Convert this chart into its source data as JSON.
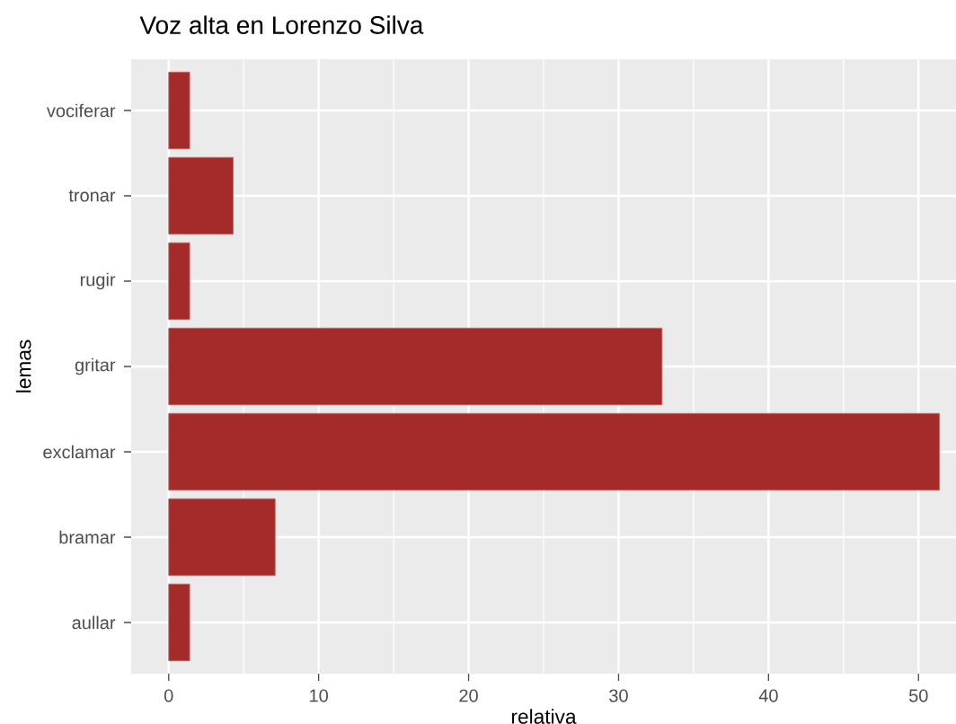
{
  "chart_data": {
    "type": "bar",
    "orientation": "horizontal",
    "title": "Voz alta en Lorenzo Silva",
    "xlabel": "relativa",
    "ylabel": "lemas",
    "categories": [
      "vociferar",
      "tronar",
      "rugir",
      "gritar",
      "exclamar",
      "bramar",
      "aullar"
    ],
    "values": [
      1.4,
      4.3,
      1.4,
      32.9,
      51.4,
      7.1,
      1.4
    ],
    "color": "#a52a2a",
    "xlim": [
      -2.5,
      52.5
    ],
    "xticks": [
      0,
      10,
      20,
      30,
      40,
      50
    ],
    "grid": true
  }
}
